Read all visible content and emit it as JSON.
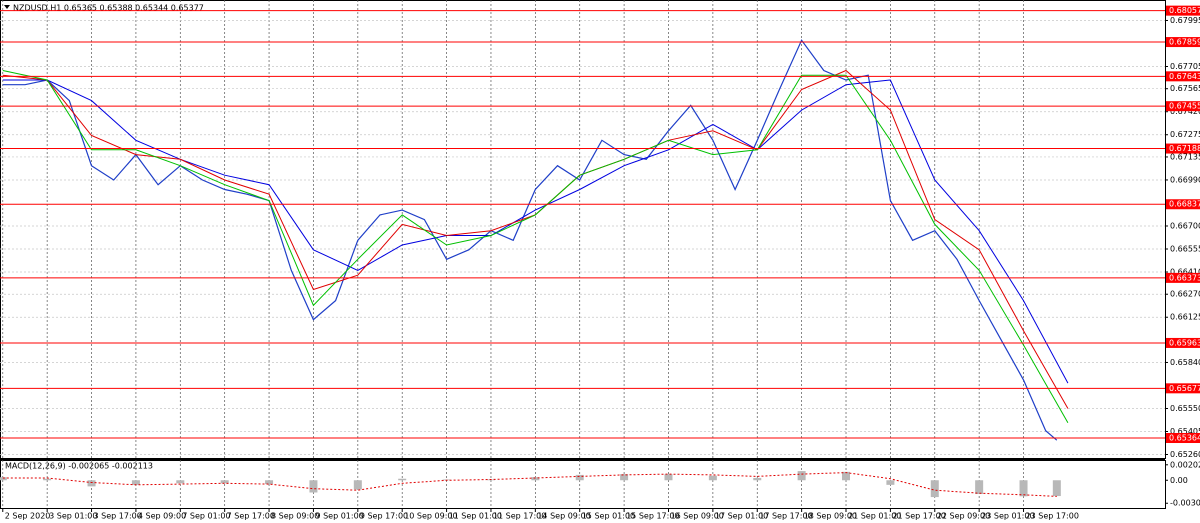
{
  "chart_data": [
    {
      "type": "line",
      "title": "NZDUSD,H1  0.65365 0.65388 0.65344 0.65377",
      "xlim": [
        -1,
        419
      ],
      "xticks": [
        {
          "value": 0,
          "label": "2 Sep 2020"
        },
        {
          "value": 16,
          "label": "3 Sep 01:00"
        },
        {
          "value": 32,
          "label": "3 Sep 17:00"
        },
        {
          "value": 48,
          "label": "4 Sep 09:00"
        },
        {
          "value": 64,
          "label": "7 Sep 01:00"
        },
        {
          "value": 80,
          "label": "7 Sep 17:00"
        },
        {
          "value": 96,
          "label": "8 Sep 09:00"
        },
        {
          "value": 112,
          "label": "9 Sep 01:00"
        },
        {
          "value": 128,
          "label": "9 Sep 17:00"
        },
        {
          "value": 144,
          "label": "10 Sep 09:00"
        },
        {
          "value": 160,
          "label": "11 Sep 01:00"
        },
        {
          "value": 176,
          "label": "11 Sep 17:00"
        },
        {
          "value": 192,
          "label": "14 Sep 09:00"
        },
        {
          "value": 208,
          "label": "15 Sep 01:00"
        },
        {
          "value": 224,
          "label": "15 Sep 17:00"
        },
        {
          "value": 240,
          "label": "16 Sep 09:00"
        },
        {
          "value": 256,
          "label": "17 Sep 01:00"
        },
        {
          "value": 272,
          "label": "17 Sep 17:00"
        },
        {
          "value": 288,
          "label": "18 Sep 09:00"
        },
        {
          "value": 304,
          "label": "21 Sep 01:00"
        },
        {
          "value": 320,
          "label": "21 Sep 17:00"
        },
        {
          "value": 336,
          "label": "22 Sep 09:00"
        },
        {
          "value": 352,
          "label": "23 Sep 01:00"
        },
        {
          "value": 368,
          "label": "23 Sep 17:00"
        }
      ],
      "ylim": [
        0.65238,
        0.68124
      ],
      "yticks": [
        0.67995,
        0.67705,
        0.67565,
        {
          "value": 0.6742,
          "label": "0.67420"
        },
        0.67275,
        0.67135,
        {
          "value": 0.6699,
          "label": "0.66990"
        },
        {
          "value": 0.667,
          "label": "0.66700"
        },
        0.66555,
        {
          "value": 0.6641,
          "label": "0.66410"
        },
        {
          "value": 0.6627,
          "label": "0.66270"
        },
        0.66125,
        {
          "value": 0.6584,
          "label": "0.65840"
        },
        {
          "value": 0.6555,
          "label": "0.65550"
        },
        0.65405,
        {
          "value": 0.6526,
          "label": "0.65260"
        }
      ],
      "grid": true,
      "levels": {
        "values": [
          0.68057,
          0.67859,
          0.67643,
          0.67455,
          0.67188,
          0.66837,
          0.66373,
          0.65963,
          0.65677,
          0.65364
        ],
        "color": "#ff0000"
      },
      "series": [
        {
          "color": "#1f3fc8",
          "width": 1.2,
          "x": [
            0,
            8,
            16,
            24,
            32,
            40,
            48,
            56,
            64,
            72,
            80,
            88,
            96,
            104,
            112,
            120,
            128,
            136,
            144,
            152,
            160,
            168,
            176,
            184,
            192,
            200,
            208,
            216,
            224,
            232,
            240,
            248,
            256,
            264,
            272,
            280,
            288,
            296,
            304,
            312,
            320,
            328,
            336,
            344,
            352,
            360,
            368,
            376,
            380
          ],
          "values": [
            0.6759,
            0.6759,
            0.6762,
            0.6749,
            0.6708,
            0.6699,
            0.6715,
            0.6696,
            0.6708,
            0.6699,
            0.6693,
            0.669,
            0.6686,
            0.6642,
            0.6611,
            0.6623,
            0.6661,
            0.6677,
            0.668,
            0.6674,
            0.6649,
            0.6655,
            0.6667,
            0.6661,
            0.6693,
            0.6708,
            0.6699,
            0.6724,
            0.6715,
            0.6712,
            0.673,
            0.6746,
            0.6724,
            0.6693,
            0.6724,
            0.6756,
            0.6787,
            0.6768,
            0.6762,
            0.6765,
            0.6686,
            0.6661,
            0.6667,
            0.6649,
            0.6623,
            0.6598,
            0.6573,
            0.6541,
            0.6535
          ]
        },
        {
          "color": "#0000e0",
          "width": 1,
          "x": [
            0,
            16,
            32,
            48,
            64,
            80,
            96,
            112,
            128,
            144,
            160,
            176,
            192,
            208,
            224,
            240,
            256,
            272,
            288,
            304,
            320,
            336,
            352,
            368,
            384
          ],
          "values": [
            0.6762,
            0.6762,
            0.6749,
            0.6724,
            0.6712,
            0.6702,
            0.6696,
            0.6655,
            0.6642,
            0.6658,
            0.6664,
            0.6664,
            0.668,
            0.6693,
            0.6708,
            0.6718,
            0.6734,
            0.6718,
            0.6743,
            0.6759,
            0.6762,
            0.6699,
            0.6667,
            0.6623,
            0.6571
          ]
        },
        {
          "color": "#e00000",
          "width": 1,
          "x": [
            0,
            16,
            32,
            48,
            64,
            80,
            96,
            112,
            128,
            144,
            160,
            176,
            192,
            208,
            224,
            240,
            256,
            272,
            288,
            304,
            320,
            336,
            352,
            368,
            384
          ],
          "values": [
            0.6765,
            0.6762,
            0.6727,
            0.6715,
            0.6712,
            0.6699,
            0.669,
            0.663,
            0.6639,
            0.6671,
            0.6664,
            0.6667,
            0.6677,
            0.6702,
            0.6712,
            0.6724,
            0.673,
            0.6718,
            0.6756,
            0.6768,
            0.6743,
            0.6674,
            0.6655,
            0.6604,
            0.6555
          ]
        },
        {
          "color": "#00c000",
          "width": 1,
          "x": [
            0,
            16,
            32,
            48,
            64,
            80,
            96,
            112,
            128,
            144,
            160,
            176,
            192,
            208,
            224,
            240,
            256,
            272,
            288,
            304,
            320,
            336,
            352,
            368,
            384
          ],
          "values": [
            0.6768,
            0.6762,
            0.6718,
            0.6718,
            0.6708,
            0.6696,
            0.6686,
            0.662,
            0.6649,
            0.6677,
            0.6658,
            0.6664,
            0.6677,
            0.6702,
            0.6712,
            0.6724,
            0.6715,
            0.6718,
            0.6765,
            0.6765,
            0.6724,
            0.6671,
            0.6642,
            0.6595,
            0.6546
          ]
        }
      ]
    },
    {
      "type": "macd",
      "title": "MACD(12,26,9) -0.002065 -0.002113",
      "xlim": [
        -1,
        419
      ],
      "ylim": [
        -0.00363,
        0.00265
      ],
      "yticks": [
        0.002024,
        {
          "value": 0,
          "label": "0.00"
        },
        -0.003008
      ],
      "series": [
        {
          "color": "#b8b8b8",
          "x": [
            0,
            16,
            32,
            48,
            64,
            80,
            96,
            112,
            128,
            144,
            160,
            176,
            192,
            208,
            224,
            240,
            256,
            272,
            288,
            304,
            320,
            336,
            352,
            368,
            380
          ],
          "values": [
            0.0004,
            0.0002,
            -0.0008,
            -0.0006,
            -0.0004,
            -0.0004,
            -0.0005,
            -0.0016,
            -0.0012,
            0.0002,
            0.0001,
            0.0001,
            0.0004,
            0.0007,
            0.0008,
            0.0008,
            0.0006,
            0.0003,
            0.0012,
            0.0011,
            -0.0006,
            -0.0022,
            -0.0018,
            -0.0021,
            -0.002065
          ]
        },
        {
          "color": "#e00000",
          "dashed": true,
          "x": [
            0,
            16,
            32,
            48,
            64,
            80,
            96,
            112,
            128,
            144,
            160,
            176,
            192,
            208,
            224,
            240,
            256,
            272,
            288,
            304,
            320,
            336,
            352,
            368,
            380
          ],
          "values": [
            0.0003,
            0.0003,
            -0.0003,
            -0.0006,
            -0.0005,
            -0.0004,
            -0.0005,
            -0.0011,
            -0.0013,
            -0.0004,
            0.0,
            0.0001,
            0.0003,
            0.0005,
            0.0007,
            0.0008,
            0.0007,
            0.0005,
            0.0008,
            0.001,
            0.0002,
            -0.0013,
            -0.0017,
            -0.0019,
            -0.002113
          ]
        }
      ]
    }
  ]
}
